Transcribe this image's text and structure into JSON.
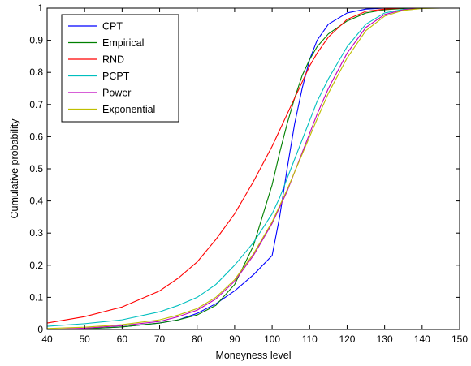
{
  "chart_data": {
    "type": "line",
    "xlabel": "Moneyness level",
    "ylabel": "Cumulative probability",
    "xlim": [
      40,
      150
    ],
    "ylim": [
      0,
      1
    ],
    "xticks": [
      40,
      50,
      60,
      70,
      80,
      90,
      100,
      110,
      120,
      130,
      140,
      150
    ],
    "xtick_labels": [
      "40",
      "50",
      "60",
      "70",
      "80",
      "90",
      "100",
      "110",
      "120",
      "130",
      "140",
      "150"
    ],
    "yticks": [
      0,
      0.1,
      0.2,
      0.3,
      0.4,
      0.5,
      0.6,
      0.7,
      0.8,
      0.9,
      1
    ],
    "ytick_labels": [
      "0",
      "0.1",
      "0.2",
      "0.3",
      "0.4",
      "0.5",
      "0.6",
      "0.7",
      "0.8",
      "0.9",
      "1"
    ],
    "grid": false,
    "legend_position": "top-left",
    "x": [
      40,
      50,
      60,
      70,
      75,
      80,
      85,
      90,
      95,
      100,
      102,
      104,
      106,
      108,
      110,
      112,
      115,
      120,
      125,
      130,
      135,
      140,
      145,
      150
    ],
    "series": [
      {
        "name": "CPT",
        "color": "#0000ff",
        "values": [
          0.0,
          0.002,
          0.008,
          0.02,
          0.03,
          0.05,
          0.08,
          0.12,
          0.17,
          0.23,
          0.35,
          0.5,
          0.64,
          0.75,
          0.84,
          0.9,
          0.95,
          0.985,
          0.997,
          1.0,
          1.0,
          1.0,
          1.0,
          1.0
        ]
      },
      {
        "name": "Empirical",
        "color": "#008000",
        "values": [
          0.0,
          0.002,
          0.008,
          0.02,
          0.03,
          0.045,
          0.075,
          0.14,
          0.26,
          0.45,
          0.55,
          0.64,
          0.72,
          0.79,
          0.84,
          0.88,
          0.92,
          0.96,
          0.985,
          0.995,
          0.999,
          1.0,
          1.0,
          1.0
        ]
      },
      {
        "name": "RND",
        "color": "#ff0000",
        "values": [
          0.02,
          0.04,
          0.07,
          0.12,
          0.16,
          0.21,
          0.28,
          0.36,
          0.46,
          0.57,
          0.62,
          0.67,
          0.72,
          0.77,
          0.82,
          0.86,
          0.91,
          0.965,
          0.99,
          0.997,
          1.0,
          1.0,
          1.0,
          1.0
        ]
      },
      {
        "name": "PCPT",
        "color": "#00bfbf",
        "values": [
          0.01,
          0.018,
          0.03,
          0.055,
          0.075,
          0.1,
          0.14,
          0.2,
          0.27,
          0.36,
          0.41,
          0.47,
          0.53,
          0.59,
          0.65,
          0.71,
          0.78,
          0.88,
          0.95,
          0.985,
          0.996,
          1.0,
          1.0,
          1.0
        ]
      },
      {
        "name": "Power",
        "color": "#bf00bf",
        "values": [
          0.0,
          0.004,
          0.012,
          0.025,
          0.04,
          0.06,
          0.095,
          0.15,
          0.23,
          0.33,
          0.38,
          0.43,
          0.49,
          0.55,
          0.61,
          0.67,
          0.75,
          0.86,
          0.94,
          0.98,
          0.995,
          1.0,
          1.0,
          1.0
        ]
      },
      {
        "name": "Exponential",
        "color": "#bfbf00",
        "values": [
          0.003,
          0.007,
          0.015,
          0.03,
          0.045,
          0.065,
          0.1,
          0.155,
          0.235,
          0.335,
          0.385,
          0.435,
          0.49,
          0.545,
          0.6,
          0.655,
          0.735,
          0.845,
          0.93,
          0.975,
          0.993,
          0.999,
          1.0,
          1.0
        ]
      }
    ]
  }
}
